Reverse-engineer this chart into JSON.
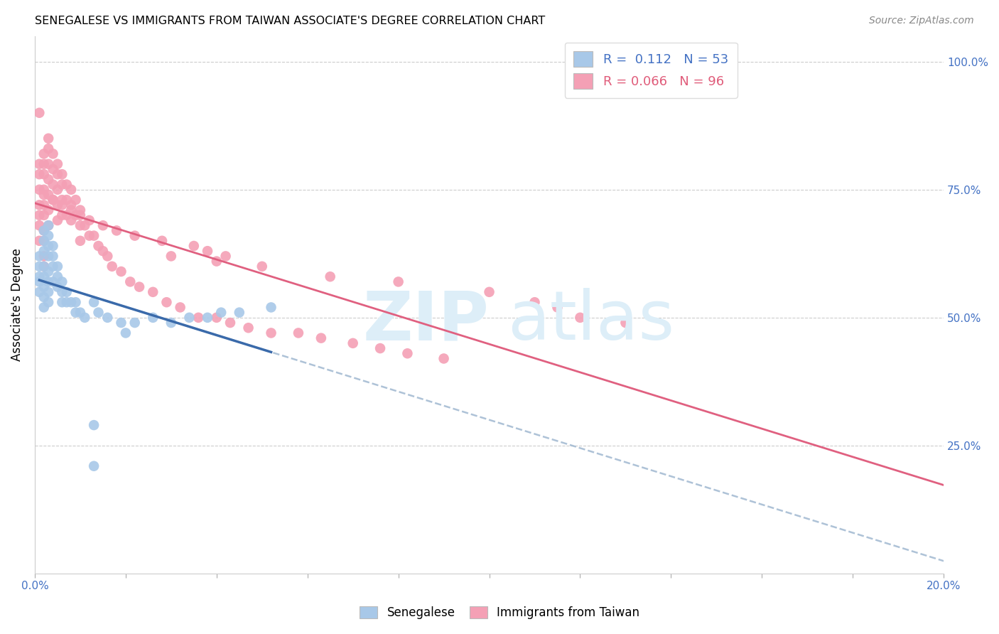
{
  "title": "SENEGALESE VS IMMIGRANTS FROM TAIWAN ASSOCIATE'S DEGREE CORRELATION CHART",
  "source": "Source: ZipAtlas.com",
  "ylabel": "Associate's Degree",
  "xlim": [
    0.0,
    0.2
  ],
  "ylim": [
    0.0,
    1.05
  ],
  "r_blue": 0.112,
  "n_blue": 53,
  "r_pink": 0.066,
  "n_pink": 96,
  "blue_color": "#a8c8e8",
  "pink_color": "#f4a0b5",
  "blue_line_color": "#3a6aaa",
  "pink_line_color": "#e06080",
  "dashed_line_color": "#a0b8d0",
  "legend_label_blue": "Senegalese",
  "legend_label_pink": "Immigrants from Taiwan",
  "blue_x": [
    0.001,
    0.001,
    0.001,
    0.001,
    0.001,
    0.002,
    0.002,
    0.002,
    0.002,
    0.002,
    0.002,
    0.002,
    0.002,
    0.003,
    0.003,
    0.003,
    0.003,
    0.003,
    0.003,
    0.003,
    0.003,
    0.004,
    0.004,
    0.004,
    0.004,
    0.005,
    0.005,
    0.005,
    0.006,
    0.006,
    0.006,
    0.007,
    0.007,
    0.008,
    0.009,
    0.009,
    0.01,
    0.011,
    0.013,
    0.014,
    0.016,
    0.019,
    0.022,
    0.026,
    0.03,
    0.034,
    0.038,
    0.041,
    0.045,
    0.052,
    0.013,
    0.013,
    0.02
  ],
  "blue_y": [
    0.62,
    0.6,
    0.58,
    0.57,
    0.55,
    0.67,
    0.65,
    0.63,
    0.6,
    0.58,
    0.56,
    0.54,
    0.52,
    0.68,
    0.66,
    0.64,
    0.62,
    0.59,
    0.57,
    0.55,
    0.53,
    0.64,
    0.62,
    0.6,
    0.57,
    0.6,
    0.58,
    0.56,
    0.57,
    0.55,
    0.53,
    0.55,
    0.53,
    0.53,
    0.53,
    0.51,
    0.51,
    0.5,
    0.53,
    0.51,
    0.5,
    0.49,
    0.49,
    0.5,
    0.49,
    0.5,
    0.5,
    0.51,
    0.51,
    0.52,
    0.29,
    0.21,
    0.47
  ],
  "pink_x": [
    0.001,
    0.001,
    0.001,
    0.001,
    0.001,
    0.001,
    0.001,
    0.002,
    0.002,
    0.002,
    0.002,
    0.002,
    0.002,
    0.002,
    0.002,
    0.002,
    0.002,
    0.003,
    0.003,
    0.003,
    0.003,
    0.003,
    0.003,
    0.003,
    0.004,
    0.004,
    0.004,
    0.004,
    0.005,
    0.005,
    0.005,
    0.005,
    0.005,
    0.006,
    0.006,
    0.006,
    0.006,
    0.007,
    0.007,
    0.007,
    0.008,
    0.008,
    0.008,
    0.009,
    0.009,
    0.01,
    0.01,
    0.01,
    0.011,
    0.012,
    0.013,
    0.014,
    0.015,
    0.016,
    0.017,
    0.019,
    0.021,
    0.023,
    0.026,
    0.029,
    0.032,
    0.036,
    0.04,
    0.043,
    0.047,
    0.052,
    0.058,
    0.063,
    0.07,
    0.076,
    0.082,
    0.09,
    0.03,
    0.04,
    0.05,
    0.065,
    0.08,
    0.11,
    0.1,
    0.115,
    0.12,
    0.13,
    0.038,
    0.042,
    0.035,
    0.028,
    0.022,
    0.018,
    0.015,
    0.012,
    0.01,
    0.008,
    0.006,
    0.004,
    0.002,
    0.001
  ],
  "pink_y": [
    0.8,
    0.78,
    0.75,
    0.72,
    0.7,
    0.68,
    0.65,
    0.82,
    0.8,
    0.78,
    0.75,
    0.72,
    0.7,
    0.67,
    0.65,
    0.62,
    0.6,
    0.85,
    0.83,
    0.8,
    0.77,
    0.74,
    0.71,
    0.68,
    0.82,
    0.79,
    0.76,
    0.73,
    0.8,
    0.78,
    0.75,
    0.72,
    0.69,
    0.78,
    0.76,
    0.73,
    0.7,
    0.76,
    0.73,
    0.7,
    0.75,
    0.72,
    0.69,
    0.73,
    0.7,
    0.71,
    0.68,
    0.65,
    0.68,
    0.66,
    0.66,
    0.64,
    0.63,
    0.62,
    0.6,
    0.59,
    0.57,
    0.56,
    0.55,
    0.53,
    0.52,
    0.5,
    0.5,
    0.49,
    0.48,
    0.47,
    0.47,
    0.46,
    0.45,
    0.44,
    0.43,
    0.42,
    0.62,
    0.61,
    0.6,
    0.58,
    0.57,
    0.53,
    0.55,
    0.52,
    0.5,
    0.49,
    0.63,
    0.62,
    0.64,
    0.65,
    0.66,
    0.67,
    0.68,
    0.69,
    0.7,
    0.71,
    0.72,
    0.73,
    0.74,
    0.9
  ]
}
